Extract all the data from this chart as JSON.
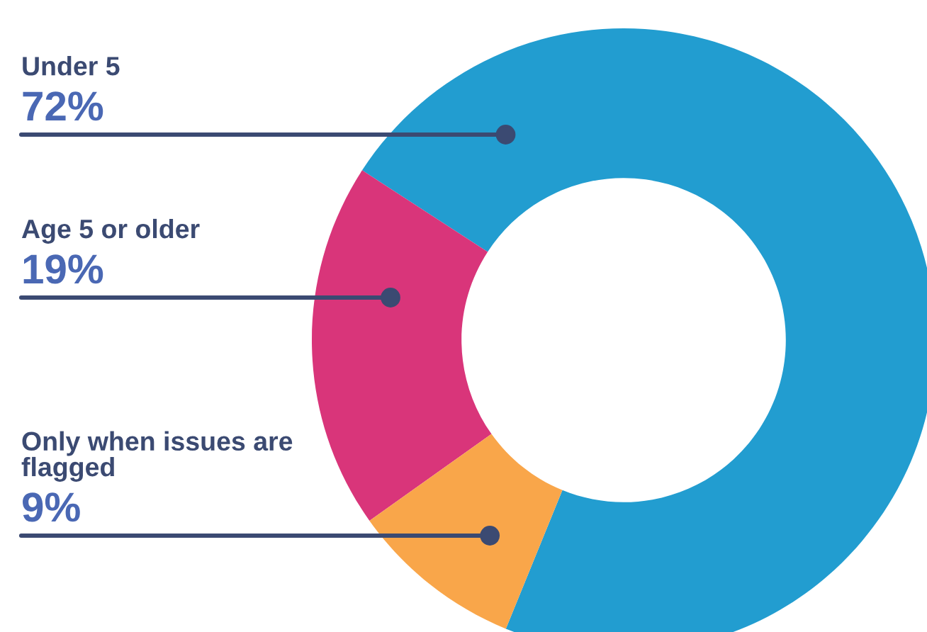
{
  "chart_data": {
    "type": "donut",
    "categories": [
      "Under 5",
      "Age 5 or older",
      "Only when issues are flagged"
    ],
    "values": [
      72,
      19,
      9
    ],
    "value_labels": [
      "72%",
      "19%",
      "9%"
    ],
    "colors": [
      "#229dd0",
      "#d9357a",
      "#f9a64a"
    ],
    "legend": false
  }
}
